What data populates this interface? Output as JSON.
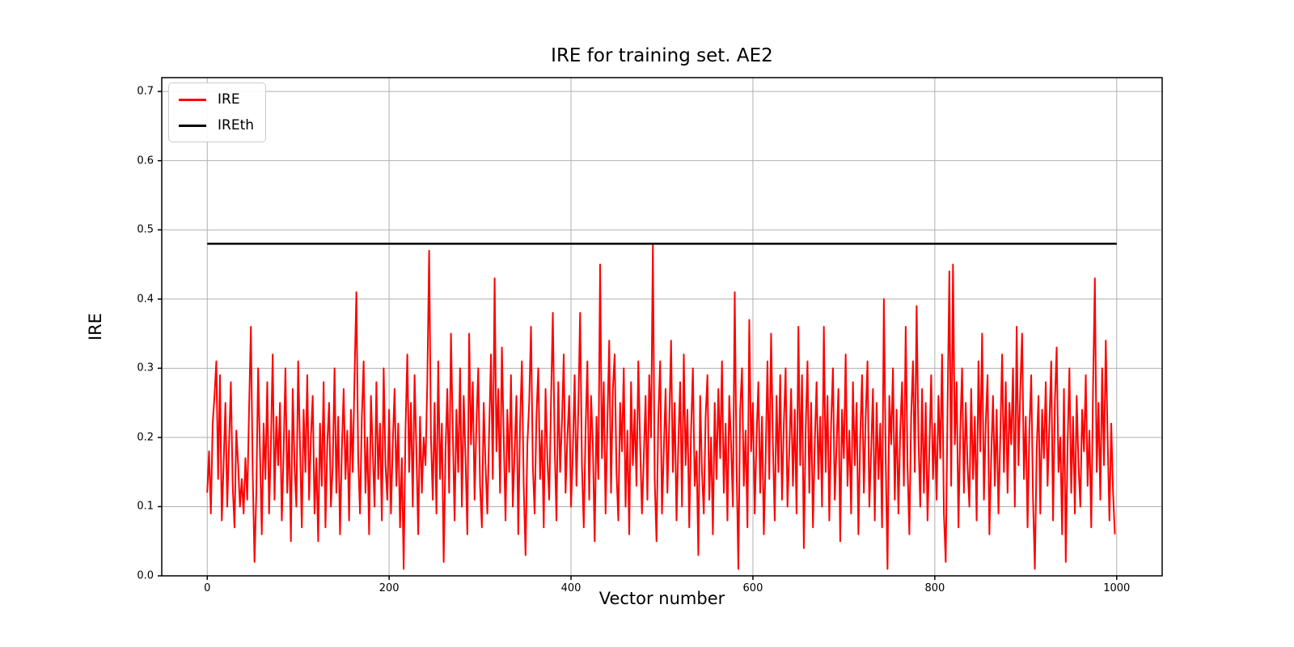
{
  "chart_data": {
    "type": "line",
    "title": "IRE for training set. AE2",
    "xlabel": "Vector number",
    "ylabel": "IRE",
    "xlim": [
      -50,
      1050
    ],
    "ylim": [
      0,
      0.72
    ],
    "xticks": [
      0,
      200,
      400,
      600,
      800,
      1000
    ],
    "yticks": [
      0.0,
      0.1,
      0.2,
      0.3,
      0.4,
      0.5,
      0.6,
      0.7
    ],
    "grid": true,
    "grid_color": "#b0b0b0",
    "legend_position": "upper-left",
    "legend": [
      {
        "label": "IRE",
        "color": "#ff0000"
      },
      {
        "label": "IREth",
        "color": "#000000"
      }
    ],
    "series": [
      {
        "name": "IRE",
        "color": "#ff0000",
        "line_width": 2,
        "x_start": 0,
        "x_step": 2,
        "values": [
          0.12,
          0.18,
          0.09,
          0.22,
          0.26,
          0.31,
          0.14,
          0.29,
          0.08,
          0.16,
          0.25,
          0.1,
          0.19,
          0.28,
          0.13,
          0.07,
          0.21,
          0.16,
          0.1,
          0.14,
          0.09,
          0.17,
          0.11,
          0.24,
          0.36,
          0.15,
          0.02,
          0.12,
          0.3,
          0.18,
          0.06,
          0.22,
          0.14,
          0.28,
          0.09,
          0.19,
          0.32,
          0.11,
          0.23,
          0.16,
          0.25,
          0.08,
          0.18,
          0.3,
          0.12,
          0.21,
          0.05,
          0.27,
          0.16,
          0.1,
          0.31,
          0.19,
          0.07,
          0.24,
          0.15,
          0.29,
          0.11,
          0.2,
          0.26,
          0.09,
          0.17,
          0.05,
          0.22,
          0.13,
          0.28,
          0.07,
          0.19,
          0.25,
          0.1,
          0.16,
          0.3,
          0.12,
          0.23,
          0.06,
          0.18,
          0.27,
          0.14,
          0.21,
          0.08,
          0.24,
          0.15,
          0.29,
          0.41,
          0.17,
          0.09,
          0.23,
          0.31,
          0.12,
          0.2,
          0.06,
          0.26,
          0.18,
          0.1,
          0.28,
          0.14,
          0.22,
          0.08,
          0.3,
          0.16,
          0.11,
          0.24,
          0.09,
          0.19,
          0.27,
          0.13,
          0.22,
          0.07,
          0.17,
          0.01,
          0.21,
          0.32,
          0.15,
          0.25,
          0.1,
          0.29,
          0.18,
          0.06,
          0.23,
          0.12,
          0.2,
          0.16,
          0.28,
          0.47,
          0.2,
          0.11,
          0.25,
          0.09,
          0.31,
          0.14,
          0.22,
          0.02,
          0.18,
          0.27,
          0.12,
          0.35,
          0.21,
          0.08,
          0.24,
          0.15,
          0.3,
          0.1,
          0.26,
          0.17,
          0.06,
          0.35,
          0.19,
          0.28,
          0.11,
          0.22,
          0.3,
          0.13,
          0.07,
          0.25,
          0.16,
          0.09,
          0.21,
          0.32,
          0.14,
          0.43,
          0.18,
          0.27,
          0.12,
          0.33,
          0.2,
          0.08,
          0.24,
          0.15,
          0.29,
          0.1,
          0.18,
          0.26,
          0.06,
          0.22,
          0.31,
          0.13,
          0.03,
          0.19,
          0.25,
          0.36,
          0.16,
          0.09,
          0.23,
          0.3,
          0.14,
          0.21,
          0.07,
          0.27,
          0.17,
          0.11,
          0.25,
          0.38,
          0.19,
          0.08,
          0.28,
          0.15,
          0.22,
          0.32,
          0.12,
          0.2,
          0.26,
          0.1,
          0.18,
          0.29,
          0.13,
          0.24,
          0.38,
          0.16,
          0.07,
          0.21,
          0.31,
          0.11,
          0.26,
          0.19,
          0.05,
          0.23,
          0.14,
          0.45,
          0.17,
          0.28,
          0.09,
          0.22,
          0.34,
          0.12,
          0.27,
          0.32,
          0.15,
          0.08,
          0.25,
          0.18,
          0.3,
          0.1,
          0.21,
          0.06,
          0.28,
          0.16,
          0.24,
          0.13,
          0.31,
          0.19,
          0.09,
          0.17,
          0.26,
          0.11,
          0.29,
          0.2,
          0.48,
          0.14,
          0.05,
          0.23,
          0.31,
          0.09,
          0.18,
          0.27,
          0.12,
          0.22,
          0.34,
          0.15,
          0.25,
          0.08,
          0.19,
          0.28,
          0.1,
          0.32,
          0.16,
          0.24,
          0.07,
          0.21,
          0.3,
          0.13,
          0.18,
          0.03,
          0.26,
          0.15,
          0.09,
          0.23,
          0.29,
          0.11,
          0.2,
          0.06,
          0.25,
          0.14,
          0.27,
          0.17,
          0.31,
          0.12,
          0.22,
          0.08,
          0.26,
          0.19,
          0.1,
          0.41,
          0.16,
          0.01,
          0.24,
          0.3,
          0.13,
          0.21,
          0.07,
          0.37,
          0.18,
          0.25,
          0.09,
          0.2,
          0.28,
          0.12,
          0.23,
          0.06,
          0.17,
          0.31,
          0.14,
          0.35,
          0.19,
          0.08,
          0.26,
          0.15,
          0.29,
          0.11,
          0.22,
          0.3,
          0.1,
          0.18,
          0.27,
          0.13,
          0.24,
          0.09,
          0.36,
          0.16,
          0.29,
          0.04,
          0.21,
          0.31,
          0.12,
          0.25,
          0.07,
          0.19,
          0.28,
          0.14,
          0.23,
          0.1,
          0.36,
          0.15,
          0.26,
          0.08,
          0.22,
          0.3,
          0.11,
          0.19,
          0.27,
          0.05,
          0.24,
          0.17,
          0.32,
          0.13,
          0.21,
          0.09,
          0.28,
          0.16,
          0.25,
          0.06,
          0.2,
          0.29,
          0.12,
          0.23,
          0.31,
          0.1,
          0.18,
          0.27,
          0.08,
          0.25,
          0.14,
          0.22,
          0.07,
          0.4,
          0.17,
          0.01,
          0.26,
          0.19,
          0.3,
          0.11,
          0.24,
          0.09,
          0.21,
          0.28,
          0.13,
          0.36,
          0.16,
          0.06,
          0.23,
          0.31,
          0.15,
          0.39,
          0.2,
          0.1,
          0.27,
          0.12,
          0.25,
          0.08,
          0.18,
          0.29,
          0.14,
          0.22,
          0.11,
          0.26,
          0.17,
          0.32,
          0.09,
          0.02,
          0.24,
          0.44,
          0.13,
          0.45,
          0.19,
          0.28,
          0.07,
          0.21,
          0.3,
          0.12,
          0.25,
          0.16,
          0.1,
          0.27,
          0.14,
          0.23,
          0.08,
          0.31,
          0.18,
          0.35,
          0.11,
          0.22,
          0.29,
          0.06,
          0.17,
          0.26,
          0.13,
          0.24,
          0.09,
          0.2,
          0.32,
          0.15,
          0.28,
          0.12,
          0.25,
          0.19,
          0.3,
          0.1,
          0.36,
          0.16,
          0.27,
          0.35,
          0.14,
          0.23,
          0.07,
          0.21,
          0.29,
          0.11,
          0.01,
          0.18,
          0.26,
          0.09,
          0.24,
          0.17,
          0.28,
          0.13,
          0.22,
          0.31,
          0.08,
          0.25,
          0.33,
          0.15,
          0.2,
          0.06,
          0.27,
          0.02,
          0.19,
          0.3,
          0.12,
          0.23,
          0.09,
          0.26,
          0.16,
          0.1,
          0.24,
          0.18,
          0.29,
          0.13,
          0.21,
          0.07,
          0.27,
          0.43,
          0.15,
          0.25,
          0.11,
          0.3,
          0.16,
          0.34,
          0.2,
          0.08,
          0.22,
          0.12,
          0.06
        ]
      },
      {
        "name": "IREth",
        "type": "hline",
        "color": "#000000",
        "line_width": 2.5,
        "value": 0.48,
        "x_range": [
          0,
          1000
        ]
      }
    ]
  }
}
